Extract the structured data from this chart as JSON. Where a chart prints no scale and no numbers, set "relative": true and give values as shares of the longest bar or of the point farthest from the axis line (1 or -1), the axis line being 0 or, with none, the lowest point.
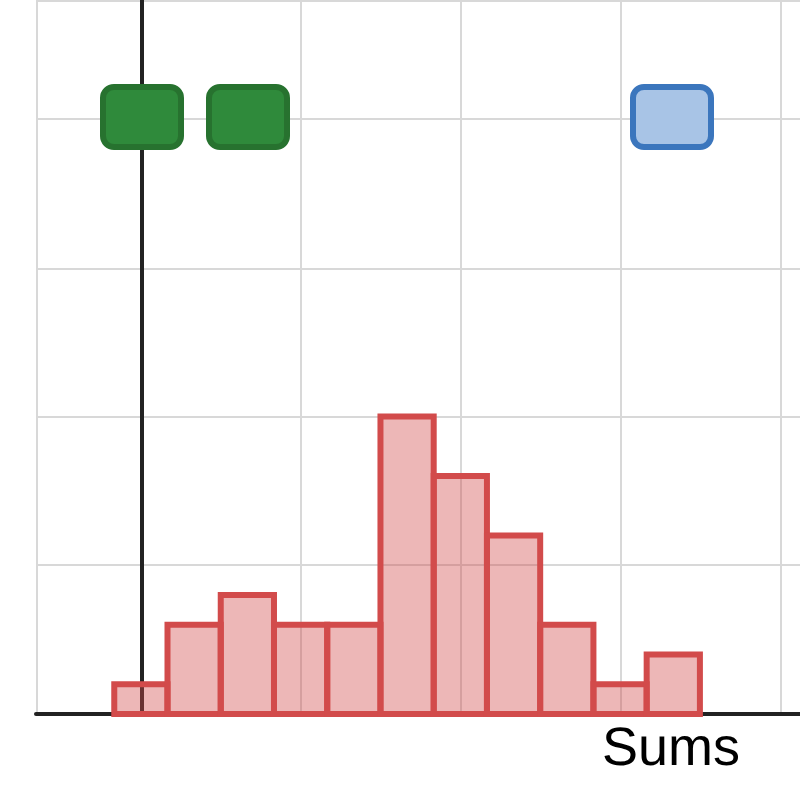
{
  "chart_data": {
    "type": "bar",
    "xlabel": "Sums",
    "relative": true,
    "grid": true,
    "categories": [
      null,
      null,
      null,
      null,
      null,
      null,
      null,
      null,
      null,
      null,
      null
    ],
    "values": [
      0.1,
      0.3,
      0.4,
      0.3,
      0.3,
      1,
      0.8,
      0.6,
      0.3,
      0.1,
      0.2
    ],
    "color": "#d24b4b"
  }
}
